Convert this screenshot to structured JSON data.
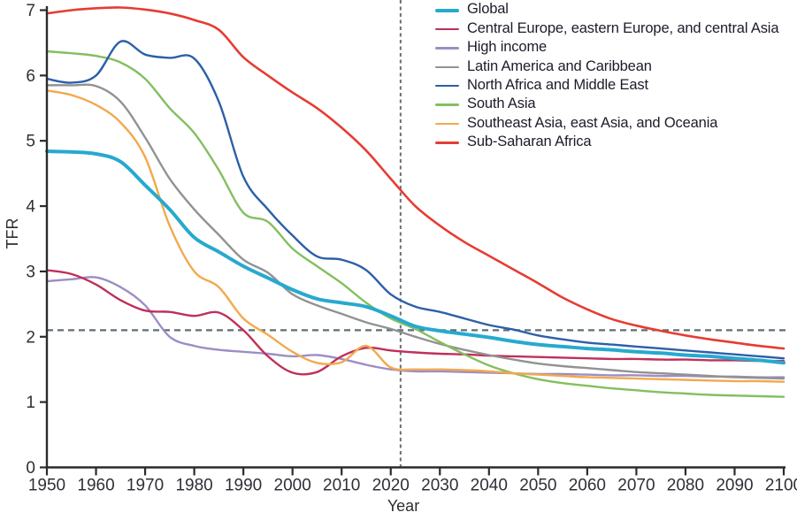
{
  "figure": {
    "background": "#ffffff",
    "axis_color": "#2b2b2b",
    "tick_label_color": "#2f2f38",
    "legend_text_color": "#1c1c2a"
  },
  "chart_data": {
    "type": "line",
    "title": "",
    "xlabel": "Year",
    "ylabel": "TFR",
    "xlim": [
      1950,
      2100
    ],
    "ylim": [
      0,
      7
    ],
    "xticks": [
      1950,
      1960,
      1970,
      1980,
      1990,
      2000,
      2010,
      2020,
      2030,
      2040,
      2050,
      2060,
      2070,
      2080,
      2090,
      2100
    ],
    "yticks": [
      0,
      1,
      2,
      3,
      4,
      5,
      6,
      7
    ],
    "grid": false,
    "legend_position": "top-right-inside",
    "x": [
      1950,
      1955,
      1960,
      1965,
      1970,
      1975,
      1980,
      1985,
      1990,
      1995,
      2000,
      2005,
      2010,
      2015,
      2020,
      2025,
      2030,
      2035,
      2040,
      2045,
      2050,
      2055,
      2060,
      2065,
      2070,
      2075,
      2080,
      2085,
      2090,
      2095,
      2100
    ],
    "series": [
      {
        "name": "Global",
        "color": "#27a9cf",
        "width": 4,
        "values": [
          4.84,
          4.83,
          4.8,
          4.68,
          4.32,
          3.95,
          3.52,
          3.3,
          3.08,
          2.9,
          2.72,
          2.58,
          2.52,
          2.46,
          2.32,
          2.16,
          2.09,
          2.04,
          1.99,
          1.93,
          1.88,
          1.85,
          1.82,
          1.8,
          1.77,
          1.75,
          1.72,
          1.7,
          1.67,
          1.64,
          1.6
        ]
      },
      {
        "name": "Central Europe, eastern Europe, and central Asia",
        "color": "#bf3059",
        "width": 2.4,
        "values": [
          3.02,
          2.96,
          2.8,
          2.56,
          2.4,
          2.38,
          2.32,
          2.37,
          2.1,
          1.7,
          1.45,
          1.46,
          1.7,
          1.83,
          1.79,
          1.76,
          1.74,
          1.73,
          1.71,
          1.7,
          1.69,
          1.68,
          1.67,
          1.66,
          1.66,
          1.65,
          1.65,
          1.64,
          1.64,
          1.63,
          1.63
        ]
      },
      {
        "name": "High income",
        "color": "#9d8dc5",
        "width": 2.4,
        "values": [
          2.85,
          2.88,
          2.91,
          2.76,
          2.48,
          2.0,
          1.86,
          1.8,
          1.77,
          1.74,
          1.7,
          1.72,
          1.66,
          1.57,
          1.5,
          1.47,
          1.47,
          1.46,
          1.45,
          1.44,
          1.43,
          1.43,
          1.42,
          1.41,
          1.41,
          1.4,
          1.4,
          1.39,
          1.39,
          1.38,
          1.38
        ]
      },
      {
        "name": "Latin America and Caribbean",
        "color": "#929292",
        "width": 2.4,
        "values": [
          5.85,
          5.85,
          5.84,
          5.6,
          5.05,
          4.42,
          3.95,
          3.56,
          3.18,
          2.98,
          2.65,
          2.48,
          2.35,
          2.22,
          2.12,
          2.0,
          1.89,
          1.8,
          1.72,
          1.65,
          1.59,
          1.55,
          1.52,
          1.49,
          1.46,
          1.44,
          1.42,
          1.4,
          1.38,
          1.37,
          1.36
        ]
      },
      {
        "name": "North Africa and Middle East",
        "color": "#2c5fa8",
        "width": 2.4,
        "values": [
          5.95,
          5.89,
          6.0,
          6.52,
          6.32,
          6.27,
          6.26,
          5.6,
          4.45,
          3.95,
          3.55,
          3.23,
          3.18,
          3.02,
          2.65,
          2.46,
          2.38,
          2.28,
          2.18,
          2.11,
          2.02,
          1.96,
          1.91,
          1.88,
          1.85,
          1.82,
          1.79,
          1.76,
          1.73,
          1.7,
          1.67
        ]
      },
      {
        "name": "South Asia",
        "color": "#83bf5f",
        "width": 2.4,
        "values": [
          6.37,
          6.34,
          6.3,
          6.2,
          5.95,
          5.5,
          5.12,
          4.55,
          3.9,
          3.76,
          3.35,
          3.08,
          2.82,
          2.52,
          2.28,
          2.12,
          1.92,
          1.73,
          1.56,
          1.44,
          1.35,
          1.29,
          1.25,
          1.21,
          1.18,
          1.15,
          1.13,
          1.11,
          1.1,
          1.09,
          1.08
        ]
      },
      {
        "name": "Southeast Asia, east Asia, and Oceania",
        "color": "#f2a94e",
        "width": 2.4,
        "values": [
          5.77,
          5.7,
          5.55,
          5.28,
          4.75,
          3.7,
          3.0,
          2.76,
          2.28,
          2.03,
          1.77,
          1.6,
          1.61,
          1.86,
          1.53,
          1.5,
          1.5,
          1.49,
          1.47,
          1.44,
          1.42,
          1.4,
          1.38,
          1.37,
          1.36,
          1.35,
          1.34,
          1.33,
          1.32,
          1.32,
          1.31
        ]
      },
      {
        "name": "Sub-Saharan Africa",
        "color": "#e63c32",
        "width": 2.6,
        "values": [
          6.95,
          7.0,
          7.03,
          7.04,
          7.01,
          6.95,
          6.85,
          6.7,
          6.28,
          6.0,
          5.74,
          5.5,
          5.2,
          4.85,
          4.42,
          4.0,
          3.7,
          3.45,
          3.24,
          3.03,
          2.82,
          2.6,
          2.42,
          2.27,
          2.17,
          2.09,
          2.02,
          1.96,
          1.91,
          1.86,
          1.82
        ]
      }
    ],
    "reference_lines": {
      "horizontal": {
        "value": 2.1,
        "style": "dashed",
        "color": "#5e6e74"
      },
      "vertical": {
        "value": 2022,
        "style": "dashed",
        "color": "#6a6f71"
      }
    }
  }
}
